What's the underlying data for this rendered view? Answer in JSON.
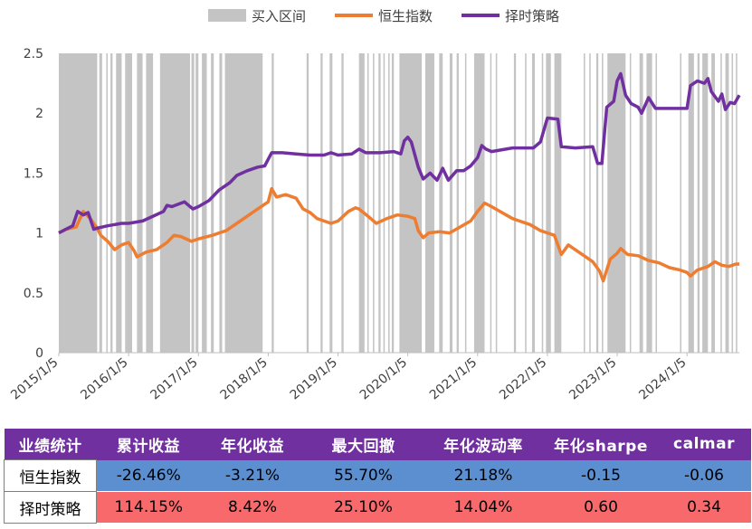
{
  "chart_data": {
    "type": "line",
    "legend": [
      "买入区间",
      "恒生指数",
      "择时策略"
    ],
    "legend_placement": "top-center",
    "colors": {
      "buy": "#c4c4c4",
      "hsi": "#ed7d31",
      "strategy": "#7030a0"
    },
    "x_tick_labels": [
      "2015/1/5",
      "2016/1/5",
      "2017/1/5",
      "2018/1/5",
      "2019/1/5",
      "2020/1/5",
      "2021/1/5",
      "2022/1/5",
      "2023/1/5",
      "2024/1/5"
    ],
    "x_range": [
      2015.0,
      2024.75
    ],
    "ylim": [
      0,
      2.5
    ],
    "y_ticks": [
      0,
      0.5,
      1,
      1.5,
      2,
      2.5
    ],
    "y_tick_labels": [
      "0",
      "0.5",
      "1",
      "1.5",
      "2",
      "2.5"
    ],
    "series": [
      {
        "name": "恒生指数",
        "color": "#ed7d31",
        "points": [
          [
            2015.0,
            1.0
          ],
          [
            2015.1,
            1.03
          ],
          [
            2015.25,
            1.05
          ],
          [
            2015.35,
            1.18
          ],
          [
            2015.45,
            1.12
          ],
          [
            2015.55,
            1.04
          ],
          [
            2015.6,
            0.98
          ],
          [
            2015.7,
            0.93
          ],
          [
            2015.8,
            0.86
          ],
          [
            2015.9,
            0.9
          ],
          [
            2016.0,
            0.92
          ],
          [
            2016.08,
            0.85
          ],
          [
            2016.12,
            0.8
          ],
          [
            2016.25,
            0.84
          ],
          [
            2016.4,
            0.86
          ],
          [
            2016.55,
            0.92
          ],
          [
            2016.65,
            0.98
          ],
          [
            2016.75,
            0.97
          ],
          [
            2016.9,
            0.93
          ],
          [
            2017.0,
            0.95
          ],
          [
            2017.2,
            0.98
          ],
          [
            2017.4,
            1.02
          ],
          [
            2017.55,
            1.08
          ],
          [
            2017.7,
            1.14
          ],
          [
            2017.85,
            1.2
          ],
          [
            2018.0,
            1.26
          ],
          [
            2018.05,
            1.37
          ],
          [
            2018.12,
            1.3
          ],
          [
            2018.25,
            1.32
          ],
          [
            2018.4,
            1.29
          ],
          [
            2018.5,
            1.2
          ],
          [
            2018.6,
            1.17
          ],
          [
            2018.7,
            1.12
          ],
          [
            2018.8,
            1.1
          ],
          [
            2018.9,
            1.08
          ],
          [
            2019.0,
            1.1
          ],
          [
            2019.15,
            1.18
          ],
          [
            2019.25,
            1.21
          ],
          [
            2019.3,
            1.2
          ],
          [
            2019.45,
            1.13
          ],
          [
            2019.55,
            1.08
          ],
          [
            2019.7,
            1.12
          ],
          [
            2019.85,
            1.15
          ],
          [
            2020.0,
            1.14
          ],
          [
            2020.1,
            1.12
          ],
          [
            2020.15,
            1.02
          ],
          [
            2020.22,
            0.96
          ],
          [
            2020.3,
            1.0
          ],
          [
            2020.45,
            1.01
          ],
          [
            2020.6,
            1.0
          ],
          [
            2020.75,
            1.05
          ],
          [
            2020.9,
            1.1
          ],
          [
            2021.0,
            1.18
          ],
          [
            2021.1,
            1.25
          ],
          [
            2021.2,
            1.22
          ],
          [
            2021.35,
            1.17
          ],
          [
            2021.5,
            1.12
          ],
          [
            2021.6,
            1.1
          ],
          [
            2021.75,
            1.07
          ],
          [
            2021.9,
            1.02
          ],
          [
            2022.0,
            1.0
          ],
          [
            2022.1,
            0.98
          ],
          [
            2022.2,
            0.82
          ],
          [
            2022.3,
            0.9
          ],
          [
            2022.45,
            0.84
          ],
          [
            2022.55,
            0.8
          ],
          [
            2022.65,
            0.76
          ],
          [
            2022.75,
            0.68
          ],
          [
            2022.8,
            0.6
          ],
          [
            2022.9,
            0.78
          ],
          [
            2023.0,
            0.83
          ],
          [
            2023.05,
            0.87
          ],
          [
            2023.15,
            0.82
          ],
          [
            2023.3,
            0.81
          ],
          [
            2023.45,
            0.77
          ],
          [
            2023.6,
            0.75
          ],
          [
            2023.75,
            0.71
          ],
          [
            2023.9,
            0.69
          ],
          [
            2024.0,
            0.67
          ],
          [
            2024.05,
            0.64
          ],
          [
            2024.15,
            0.69
          ],
          [
            2024.3,
            0.72
          ],
          [
            2024.4,
            0.76
          ],
          [
            2024.5,
            0.73
          ],
          [
            2024.6,
            0.72
          ],
          [
            2024.7,
            0.74
          ],
          [
            2024.75,
            0.74
          ]
        ]
      },
      {
        "name": "择时策略",
        "color": "#7030a0",
        "points": [
          [
            2015.0,
            1.0
          ],
          [
            2015.1,
            1.03
          ],
          [
            2015.2,
            1.06
          ],
          [
            2015.27,
            1.18
          ],
          [
            2015.35,
            1.15
          ],
          [
            2015.42,
            1.17
          ],
          [
            2015.5,
            1.03
          ],
          [
            2015.55,
            1.04
          ],
          [
            2015.7,
            1.06
          ],
          [
            2015.9,
            1.08
          ],
          [
            2016.0,
            1.08
          ],
          [
            2016.2,
            1.1
          ],
          [
            2016.35,
            1.14
          ],
          [
            2016.5,
            1.18
          ],
          [
            2016.55,
            1.23
          ],
          [
            2016.62,
            1.22
          ],
          [
            2016.8,
            1.26
          ],
          [
            2016.92,
            1.2
          ],
          [
            2017.0,
            1.22
          ],
          [
            2017.15,
            1.27
          ],
          [
            2017.3,
            1.36
          ],
          [
            2017.45,
            1.42
          ],
          [
            2017.55,
            1.48
          ],
          [
            2017.7,
            1.52
          ],
          [
            2017.85,
            1.55
          ],
          [
            2017.95,
            1.56
          ],
          [
            2018.05,
            1.67
          ],
          [
            2018.2,
            1.67
          ],
          [
            2018.4,
            1.66
          ],
          [
            2018.6,
            1.65
          ],
          [
            2018.8,
            1.65
          ],
          [
            2018.9,
            1.67
          ],
          [
            2019.0,
            1.65
          ],
          [
            2019.2,
            1.66
          ],
          [
            2019.3,
            1.7
          ],
          [
            2019.4,
            1.67
          ],
          [
            2019.6,
            1.67
          ],
          [
            2019.8,
            1.68
          ],
          [
            2019.9,
            1.66
          ],
          [
            2019.95,
            1.77
          ],
          [
            2020.0,
            1.8
          ],
          [
            2020.05,
            1.76
          ],
          [
            2020.15,
            1.55
          ],
          [
            2020.22,
            1.45
          ],
          [
            2020.32,
            1.5
          ],
          [
            2020.42,
            1.44
          ],
          [
            2020.5,
            1.54
          ],
          [
            2020.58,
            1.44
          ],
          [
            2020.7,
            1.52
          ],
          [
            2020.8,
            1.52
          ],
          [
            2020.9,
            1.56
          ],
          [
            2021.0,
            1.63
          ],
          [
            2021.06,
            1.73
          ],
          [
            2021.12,
            1.7
          ],
          [
            2021.2,
            1.68
          ],
          [
            2021.5,
            1.71
          ],
          [
            2021.8,
            1.71
          ],
          [
            2021.9,
            1.76
          ],
          [
            2022.0,
            1.96
          ],
          [
            2022.15,
            1.95
          ],
          [
            2022.2,
            1.72
          ],
          [
            2022.4,
            1.71
          ],
          [
            2022.65,
            1.72
          ],
          [
            2022.72,
            1.58
          ],
          [
            2022.78,
            1.58
          ],
          [
            2022.85,
            2.05
          ],
          [
            2022.95,
            2.1
          ],
          [
            2023.0,
            2.27
          ],
          [
            2023.05,
            2.33
          ],
          [
            2023.12,
            2.15
          ],
          [
            2023.2,
            2.08
          ],
          [
            2023.3,
            2.05
          ],
          [
            2023.35,
            2.0
          ],
          [
            2023.45,
            2.13
          ],
          [
            2023.55,
            2.04
          ],
          [
            2023.7,
            2.04
          ],
          [
            2023.85,
            2.04
          ],
          [
            2024.0,
            2.04
          ],
          [
            2024.05,
            2.23
          ],
          [
            2024.15,
            2.27
          ],
          [
            2024.25,
            2.25
          ],
          [
            2024.3,
            2.29
          ],
          [
            2024.35,
            2.18
          ],
          [
            2024.45,
            2.1
          ],
          [
            2024.5,
            2.16
          ],
          [
            2024.55,
            2.03
          ],
          [
            2024.62,
            2.09
          ],
          [
            2024.68,
            2.08
          ],
          [
            2024.75,
            2.15
          ]
        ]
      }
    ],
    "buy_intervals": [
      [
        2015.0,
        2015.55
      ],
      [
        2015.58,
        2015.62
      ],
      [
        2015.68,
        2015.7
      ],
      [
        2015.74,
        2015.77
      ],
      [
        2015.82,
        2015.9
      ],
      [
        2015.95,
        2016.05
      ],
      [
        2016.12,
        2016.2
      ],
      [
        2016.25,
        2016.35
      ],
      [
        2016.45,
        2016.88
      ],
      [
        2016.9,
        2016.94
      ],
      [
        2016.96,
        2017.0
      ],
      [
        2017.05,
        2017.12
      ],
      [
        2017.18,
        2017.22
      ],
      [
        2017.3,
        2017.34
      ],
      [
        2017.38,
        2017.92
      ],
      [
        2018.05,
        2018.08
      ],
      [
        2018.55,
        2018.58
      ],
      [
        2018.75,
        2018.78
      ],
      [
        2018.88,
        2018.92
      ],
      [
        2019.05,
        2019.08
      ],
      [
        2019.3,
        2019.38
      ],
      [
        2019.42,
        2019.44
      ],
      [
        2019.5,
        2019.52
      ],
      [
        2019.58,
        2019.61
      ],
      [
        2019.65,
        2019.67
      ],
      [
        2019.72,
        2019.74
      ],
      [
        2019.77,
        2019.8
      ],
      [
        2019.88,
        2020.2
      ],
      [
        2020.25,
        2020.38
      ],
      [
        2020.45,
        2020.5
      ],
      [
        2020.6,
        2020.64
      ],
      [
        2020.7,
        2020.73
      ],
      [
        2020.82,
        2020.84
      ],
      [
        2020.95,
        2021.1
      ],
      [
        2021.18,
        2021.2
      ],
      [
        2021.26,
        2021.28
      ],
      [
        2021.52,
        2021.55
      ],
      [
        2021.68,
        2021.7
      ],
      [
        2021.78,
        2021.82
      ],
      [
        2021.92,
        2021.94
      ],
      [
        2021.98,
        2022.05
      ],
      [
        2022.1,
        2022.2
      ],
      [
        2022.52,
        2022.54
      ],
      [
        2022.6,
        2022.62
      ],
      [
        2022.7,
        2022.73
      ],
      [
        2022.78,
        2022.8
      ],
      [
        2022.86,
        2023.12
      ],
      [
        2023.18,
        2023.2
      ],
      [
        2023.32,
        2023.37
      ],
      [
        2023.42,
        2023.5
      ],
      [
        2023.55,
        2023.57
      ],
      [
        2023.9,
        2023.92
      ],
      [
        2024.02,
        2024.1
      ],
      [
        2024.15,
        2024.18
      ],
      [
        2024.22,
        2024.3
      ],
      [
        2024.35,
        2024.4
      ],
      [
        2024.48,
        2024.5
      ],
      [
        2024.55,
        2024.6
      ],
      [
        2024.64,
        2024.66
      ],
      [
        2024.7,
        2024.72
      ]
    ]
  },
  "table": {
    "headers": [
      "业绩统计",
      "累计收益",
      "年化收益",
      "最大回撤",
      "年化波动率",
      "年化sharpe",
      "calmar"
    ],
    "rows": [
      {
        "label": "恒生指数",
        "cells": [
          "-26.46%",
          "-3.21%",
          "55.70%",
          "21.18%",
          "-0.15",
          "-0.06"
        ]
      },
      {
        "label": "择时策略",
        "cells": [
          "114.15%",
          "8.42%",
          "25.10%",
          "14.04%",
          "0.60",
          "0.34"
        ]
      }
    ]
  }
}
